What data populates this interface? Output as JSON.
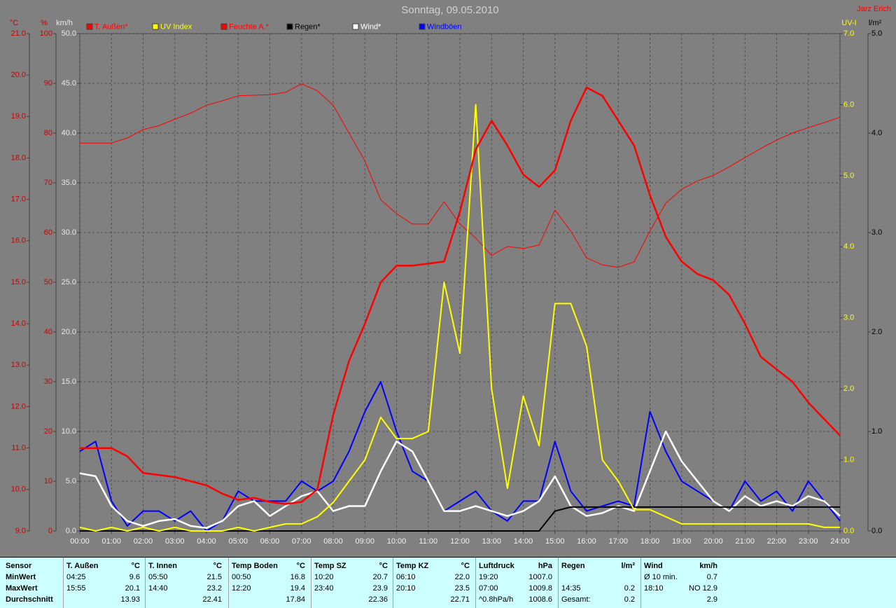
{
  "header": {
    "title": "Sonntag, 09.05.2010",
    "author": "Jarz Erich"
  },
  "chart_data": {
    "type": "line",
    "grid": true,
    "x": [
      0,
      0.5,
      1,
      1.5,
      2,
      2.5,
      3,
      3.5,
      4,
      4.5,
      5,
      5.5,
      6,
      6.5,
      7,
      7.5,
      8,
      8.5,
      9,
      9.5,
      10,
      10.5,
      11,
      11.5,
      12,
      12.5,
      13,
      13.5,
      14,
      14.5,
      15,
      15.5,
      16,
      16.5,
      17,
      17.5,
      18,
      18.5,
      19,
      19.5,
      20,
      20.5,
      21,
      21.5,
      22,
      22.5,
      23,
      23.5,
      24
    ],
    "xlim": [
      0,
      24
    ],
    "xticks": [
      {
        "value": 0,
        "label": "00:00"
      },
      {
        "value": 1,
        "label": "01:00"
      },
      {
        "value": 2,
        "label": "02:00"
      },
      {
        "value": 3,
        "label": "03:00"
      },
      {
        "value": 4,
        "label": "04:00"
      },
      {
        "value": 5,
        "label": "05:00"
      },
      {
        "value": 6,
        "label": "06:00"
      },
      {
        "value": 7,
        "label": "07:00"
      },
      {
        "value": 8,
        "label": "08:00"
      },
      {
        "value": 9,
        "label": "09:00"
      },
      {
        "value": 10,
        "label": "10:00"
      },
      {
        "value": 11,
        "label": "11:00"
      },
      {
        "value": 12,
        "label": "12:00"
      },
      {
        "value": 13,
        "label": "13:00"
      },
      {
        "value": 14,
        "label": "14:00"
      },
      {
        "value": 15,
        "label": "15:00"
      },
      {
        "value": 16,
        "label": "16:00"
      },
      {
        "value": 17,
        "label": "17:00"
      },
      {
        "value": 18,
        "label": "18:00"
      },
      {
        "value": 19,
        "label": "19:00"
      },
      {
        "value": 20,
        "label": "20:00"
      },
      {
        "value": 21,
        "label": "21:00"
      },
      {
        "value": 22,
        "label": "22:00"
      },
      {
        "value": 23,
        "label": "23:00"
      },
      {
        "value": 24,
        "label": "24:00"
      }
    ],
    "axes": {
      "temp": {
        "unit": "°C",
        "color": "#cc0000",
        "lim": [
          9,
          21
        ],
        "ticks": [
          {
            "value": 9,
            "label": "9.0"
          },
          {
            "value": 10,
            "label": "10.0"
          },
          {
            "value": 11,
            "label": "11.0"
          },
          {
            "value": 12,
            "label": "12.0"
          },
          {
            "value": 13,
            "label": "13.0"
          },
          {
            "value": 14,
            "label": "14.0"
          },
          {
            "value": 15,
            "label": "15.0"
          },
          {
            "value": 16,
            "label": "16.0"
          },
          {
            "value": 17,
            "label": "17.0"
          },
          {
            "value": 18,
            "label": "18.0"
          },
          {
            "value": 19,
            "label": "19.0"
          },
          {
            "value": 20,
            "label": "20.0"
          },
          {
            "value": 21,
            "label": "21.0"
          }
        ]
      },
      "hum": {
        "unit": "%",
        "color": "#cc0000",
        "lim": [
          0,
          100
        ],
        "ticks": [
          0,
          10,
          20,
          30,
          40,
          50,
          60,
          70,
          80,
          90,
          100
        ]
      },
      "kmh": {
        "unit": "km/h",
        "color": "#e8e8e8",
        "lim": [
          0,
          50
        ],
        "ticks": [
          {
            "value": 0,
            "label": "0.0"
          },
          {
            "value": 5,
            "label": "5.0"
          },
          {
            "value": 10,
            "label": "10.0"
          },
          {
            "value": 15,
            "label": "15.0"
          },
          {
            "value": 20,
            "label": "20.0"
          },
          {
            "value": 25,
            "label": "25.0"
          },
          {
            "value": 30,
            "label": "30.0"
          },
          {
            "value": 35,
            "label": "35.0"
          },
          {
            "value": 40,
            "label": "40.0"
          },
          {
            "value": 45,
            "label": "45.0"
          },
          {
            "value": 50,
            "label": "50.0"
          }
        ]
      },
      "uv": {
        "unit": "UV-I",
        "color": "#ffff00",
        "lim": [
          0,
          7
        ],
        "ticks": [
          {
            "value": 0,
            "label": "0.0"
          },
          {
            "value": 1,
            "label": "1.0"
          },
          {
            "value": 2,
            "label": "2.0"
          },
          {
            "value": 3,
            "label": "3.0"
          },
          {
            "value": 4,
            "label": "4.0"
          },
          {
            "value": 5,
            "label": "5.0"
          },
          {
            "value": 6,
            "label": "6.0"
          },
          {
            "value": 7,
            "label": "7.0"
          }
        ]
      },
      "rain": {
        "unit": "l/m²",
        "color": "#000000",
        "lim": [
          0,
          5
        ],
        "ticks": [
          {
            "value": 0,
            "label": "0.0"
          },
          {
            "value": 1,
            "label": "1.0"
          },
          {
            "value": 2,
            "label": "2.0"
          },
          {
            "value": 3,
            "label": "3.0"
          },
          {
            "value": 4,
            "label": "4.0"
          },
          {
            "value": 5,
            "label": "5.0"
          }
        ]
      }
    },
    "series": [
      {
        "name": "T. Außen*",
        "color": "#ff0000",
        "axis": "temp",
        "line_width": 2.5,
        "values": [
          11.0,
          11.0,
          11.0,
          10.8,
          10.4,
          10.35,
          10.3,
          10.2,
          10.1,
          9.9,
          9.75,
          9.8,
          9.7,
          9.65,
          9.7,
          10.0,
          11.8,
          13.1,
          14.0,
          15.0,
          15.4,
          15.4,
          15.45,
          15.5,
          16.7,
          18.2,
          18.9,
          18.3,
          17.6,
          17.3,
          17.7,
          18.9,
          19.7,
          19.5,
          18.9,
          18.3,
          17.1,
          16.1,
          15.5,
          15.2,
          15.05,
          14.7,
          14.0,
          13.2,
          12.9,
          12.6,
          12.1,
          11.7,
          11.3
        ]
      },
      {
        "name": "UV Index",
        "color": "#ffff00",
        "axis": "uv",
        "line_width": 2,
        "values": [
          0.05,
          0,
          0.05,
          0,
          0.05,
          0,
          0.05,
          0,
          0,
          0,
          0.05,
          0,
          0.05,
          0.1,
          0.1,
          0.2,
          0.4,
          0.7,
          1.0,
          1.6,
          1.3,
          1.3,
          1.4,
          3.5,
          2.5,
          6.0,
          2.0,
          0.6,
          1.9,
          1.2,
          3.2,
          3.2,
          2.6,
          1.0,
          0.7,
          0.3,
          0.3,
          0.2,
          0.1,
          0.1,
          0.1,
          0.1,
          0.1,
          0.1,
          0.1,
          0.1,
          0.1,
          0.05,
          0.05
        ]
      },
      {
        "name": "Feuchte A.*",
        "color": "#ff0000",
        "axis": "hum",
        "line_width": 1,
        "values": [
          78,
          78,
          78,
          79,
          80.7,
          81.5,
          82.8,
          84,
          85.6,
          86.5,
          87.5,
          87.6,
          87.7,
          88.2,
          89.9,
          88.5,
          85.6,
          80,
          74.4,
          66.6,
          63.8,
          61.7,
          61.7,
          66.2,
          61.7,
          58.9,
          55.4,
          57.2,
          56.8,
          57.5,
          64.5,
          60.3,
          54.9,
          53.5,
          53,
          54.1,
          60.3,
          65.9,
          68.7,
          70.4,
          71.5,
          73.2,
          75.1,
          76.9,
          78.6,
          80,
          81.1,
          82.1,
          83.2
        ]
      },
      {
        "name": "Regen*",
        "color": "#000000",
        "axis": "rain",
        "line_width": 2,
        "values": [
          0,
          0,
          0,
          0,
          0,
          0,
          0,
          0,
          0,
          0,
          0,
          0,
          0,
          0,
          0,
          0,
          0,
          0,
          0,
          0,
          0,
          0,
          0,
          0,
          0,
          0,
          0,
          0,
          0,
          0,
          0.2,
          0.24,
          0.24,
          0.24,
          0.24,
          0.24,
          0.24,
          0.24,
          0.24,
          0.24,
          0.24,
          0.24,
          0.24,
          0.24,
          0.24,
          0.24,
          0.24,
          0.24,
          0.24
        ]
      },
      {
        "name": "Wind*",
        "color": "#ffffff",
        "axis": "kmh",
        "line_width": 2.5,
        "values": [
          5.8,
          5.5,
          2.5,
          1,
          0.5,
          1,
          1.2,
          0.5,
          0.3,
          1,
          2.5,
          3,
          1.5,
          2.5,
          3.5,
          4,
          2,
          2.5,
          2.5,
          6,
          9,
          8,
          5,
          2,
          2,
          2.5,
          2,
          1.5,
          2,
          3,
          5.5,
          2.5,
          1.5,
          1.8,
          2.5,
          2,
          6,
          10,
          7,
          5,
          3,
          2,
          3.5,
          2.5,
          3,
          2.5,
          3.5,
          3,
          1.5
        ]
      },
      {
        "name": "Windböen",
        "color": "#0000ff",
        "axis": "kmh",
        "line_width": 2,
        "values": [
          8,
          9,
          3,
          0.5,
          2,
          2,
          1,
          2,
          0,
          1,
          4,
          3,
          3,
          3,
          5,
          4,
          5,
          8,
          12,
          15,
          10,
          6,
          5,
          2,
          3,
          4,
          2,
          1,
          3,
          3,
          9,
          4,
          2,
          2.5,
          3,
          2.5,
          12,
          8,
          5,
          4,
          3,
          2,
          5,
          3,
          4,
          2,
          5,
          3,
          1
        ]
      }
    ]
  },
  "summary": {
    "row_labels": [
      "Sensor",
      "MinWert",
      "MaxWert",
      "Durchschnitt"
    ],
    "sections": [
      {
        "title": "T. Außen",
        "unit": "°C",
        "rows": [
          [
            "04:25",
            "9.6"
          ],
          [
            "15:55",
            "20.1"
          ],
          [
            null,
            "13.93"
          ]
        ]
      },
      {
        "title": "T. Innen",
        "unit": "°C",
        "rows": [
          [
            "05:50",
            "21.5"
          ],
          [
            "14:40",
            "23.2"
          ],
          [
            null,
            "22.41"
          ]
        ]
      },
      {
        "title": "Temp Boden",
        "unit": "°C",
        "rows": [
          [
            "00:50",
            "16.8"
          ],
          [
            "12:20",
            "19.4"
          ],
          [
            null,
            "17.84"
          ]
        ]
      },
      {
        "title": "Temp SZ",
        "unit": "°C",
        "rows": [
          [
            "10:20",
            "20.7"
          ],
          [
            "23:40",
            "23.9"
          ],
          [
            null,
            "22.36"
          ]
        ]
      },
      {
        "title": "Temp KZ",
        "unit": "°C",
        "rows": [
          [
            "06:10",
            "22.0"
          ],
          [
            "20:10",
            "23.5"
          ],
          [
            null,
            "22.71"
          ]
        ]
      },
      {
        "title": "Luftdruck",
        "unit": "hPa",
        "rows": [
          [
            "19:20",
            "1007.0"
          ],
          [
            "07:00",
            "1009.8"
          ],
          [
            "^0.8hPa/h",
            "1008.6"
          ]
        ]
      },
      {
        "title": "Regen",
        "unit": "l/m²",
        "rows": [
          [
            null,
            null
          ],
          [
            "14:35",
            "0.2"
          ],
          [
            "Gesamt:",
            "0.2"
          ]
        ]
      },
      {
        "title": "Wind",
        "unit": "km/h",
        "rows": [
          [
            "Ø 10 min.",
            "0.7"
          ],
          [
            "18:10",
            "NO 12.9"
          ],
          [
            null,
            "2.9"
          ]
        ]
      }
    ]
  }
}
